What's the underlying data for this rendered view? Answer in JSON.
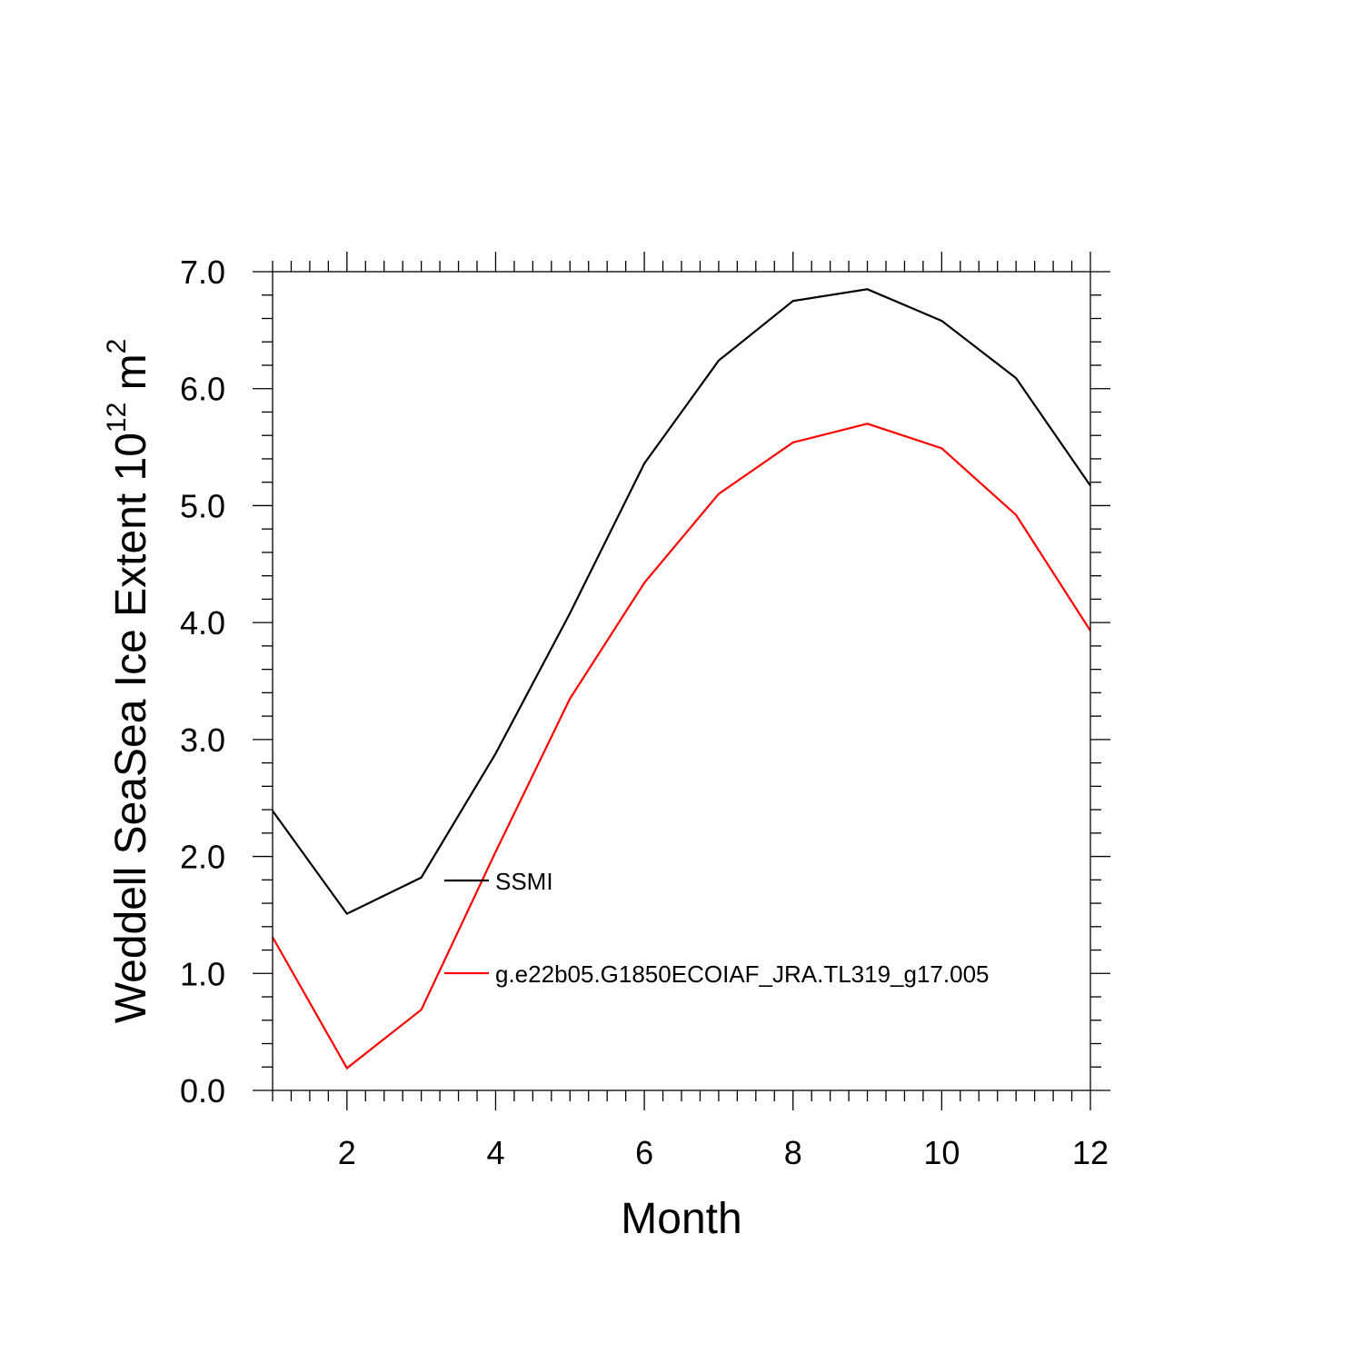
{
  "chart_data": {
    "type": "line",
    "title": "",
    "xlabel": "Month",
    "ylabel": {
      "prefix": "Weddell SeaSea Ice Extent 10",
      "exponent": "12",
      "unit": " m",
      "unit_exponent": "2"
    },
    "xlim": [
      1,
      12
    ],
    "ylim": [
      0,
      7
    ],
    "x_ticks": [
      2,
      4,
      6,
      8,
      10,
      12
    ],
    "x_tick_labels": [
      "2",
      "4",
      "6",
      "8",
      "10",
      "12"
    ],
    "y_ticks": [
      0,
      1,
      2,
      3,
      4,
      5,
      6,
      7
    ],
    "y_tick_labels": [
      "0.0",
      "1.0",
      "2.0",
      "3.0",
      "4.0",
      "5.0",
      "6.0",
      "7.0"
    ],
    "grid": false,
    "legend_position": "center-left inside",
    "x": [
      1,
      2,
      3,
      4,
      5,
      6,
      7,
      8,
      9,
      10,
      11,
      12
    ],
    "series": [
      {
        "name": "SSMI",
        "color": "#000000",
        "values": [
          2.39,
          1.51,
          1.82,
          2.88,
          4.08,
          5.36,
          6.24,
          6.75,
          6.85,
          6.58,
          6.09,
          5.17
        ]
      },
      {
        "name": "g.e22b05.G1850ECOIAF_JRA.TL319_g17.005",
        "color": "#ff0000",
        "values": [
          1.31,
          0.19,
          0.69,
          2.04,
          3.35,
          4.34,
          5.1,
          5.54,
          5.7,
          5.49,
          4.92,
          3.93
        ]
      }
    ]
  }
}
